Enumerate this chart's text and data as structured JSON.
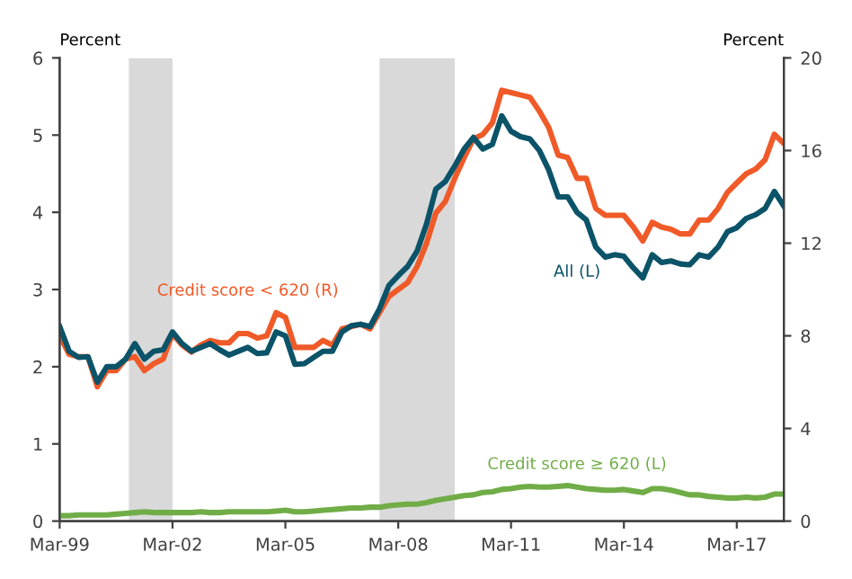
{
  "chart_data": {
    "type": "line",
    "ylabel": "Percent",
    "y2label": "Percent",
    "x": [
      "1999-03",
      "1999-06",
      "1999-09",
      "1999-12",
      "2000-03",
      "2000-06",
      "2000-09",
      "2000-12",
      "2001-03",
      "2001-06",
      "2001-09",
      "2001-12",
      "2002-03",
      "2002-06",
      "2002-09",
      "2002-12",
      "2003-03",
      "2003-06",
      "2003-09",
      "2003-12",
      "2004-03",
      "2004-06",
      "2004-09",
      "2004-12",
      "2005-03",
      "2005-06",
      "2005-09",
      "2005-12",
      "2006-03",
      "2006-06",
      "2006-09",
      "2006-12",
      "2007-03",
      "2007-06",
      "2007-09",
      "2007-12",
      "2008-03",
      "2008-06",
      "2008-09",
      "2008-12",
      "2009-03",
      "2009-06",
      "2009-09",
      "2009-12",
      "2010-03",
      "2010-06",
      "2010-09",
      "2010-12",
      "2011-03",
      "2011-06",
      "2011-09",
      "2011-12",
      "2012-03",
      "2012-06",
      "2012-09",
      "2012-12",
      "2013-03",
      "2013-06",
      "2013-09",
      "2013-12",
      "2014-03",
      "2014-06",
      "2014-09",
      "2014-12",
      "2015-03",
      "2015-06",
      "2015-09",
      "2015-12",
      "2016-03",
      "2016-06",
      "2016-09",
      "2016-12",
      "2017-03",
      "2017-06",
      "2017-09",
      "2017-12",
      "2018-03",
      "2018-06"
    ],
    "series": [
      {
        "name": "Credit score < 620 (R)",
        "color": "#f05a28",
        "axis": "y2",
        "values": [
          8.0,
          7.2,
          7.1,
          7.1,
          5.8,
          6.5,
          6.5,
          7.0,
          7.1,
          6.5,
          6.8,
          7.0,
          8.1,
          7.6,
          7.3,
          7.6,
          7.8,
          7.7,
          7.7,
          8.1,
          8.1,
          7.9,
          8.0,
          9.0,
          8.8,
          7.5,
          7.5,
          7.5,
          7.8,
          7.6,
          8.3,
          8.4,
          8.5,
          8.3,
          9.0,
          9.7,
          10.0,
          10.3,
          11.0,
          12.0,
          13.3,
          13.8,
          14.8,
          15.7,
          16.5,
          16.7,
          17.2,
          18.6,
          18.5,
          18.4,
          18.3,
          17.7,
          17.0,
          15.8,
          15.7,
          14.8,
          14.8,
          13.5,
          13.2,
          13.2,
          13.2,
          12.7,
          12.1,
          12.9,
          12.7,
          12.6,
          12.4,
          12.4,
          13.0,
          13.0,
          13.5,
          14.2,
          14.6,
          15.0,
          15.2,
          15.6,
          16.7,
          16.3
        ]
      },
      {
        "name": "All (L)",
        "color": "#0b5368",
        "values": [
          2.52,
          2.2,
          2.12,
          2.13,
          1.8,
          2.0,
          2.0,
          2.1,
          2.3,
          2.1,
          2.2,
          2.22,
          2.45,
          2.3,
          2.2,
          2.25,
          2.3,
          2.22,
          2.15,
          2.2,
          2.25,
          2.17,
          2.18,
          2.45,
          2.4,
          2.03,
          2.04,
          2.12,
          2.2,
          2.2,
          2.45,
          2.53,
          2.55,
          2.52,
          2.75,
          3.05,
          3.18,
          3.3,
          3.5,
          3.85,
          4.3,
          4.4,
          4.6,
          4.82,
          4.97,
          4.82,
          4.88,
          5.25,
          5.05,
          4.98,
          4.95,
          4.8,
          4.55,
          4.2,
          4.2,
          4.0,
          3.9,
          3.55,
          3.42,
          3.45,
          3.43,
          3.28,
          3.15,
          3.45,
          3.35,
          3.37,
          3.33,
          3.32,
          3.45,
          3.42,
          3.55,
          3.75,
          3.8,
          3.92,
          3.97,
          4.05,
          4.27,
          4.08
        ]
      },
      {
        "name": "Credit score ≥ 620 (L)",
        "color": "#70ad47",
        "values": [
          0.07,
          0.07,
          0.08,
          0.08,
          0.08,
          0.08,
          0.09,
          0.1,
          0.11,
          0.12,
          0.11,
          0.11,
          0.11,
          0.11,
          0.11,
          0.12,
          0.11,
          0.11,
          0.12,
          0.12,
          0.12,
          0.12,
          0.12,
          0.13,
          0.14,
          0.12,
          0.12,
          0.13,
          0.14,
          0.15,
          0.16,
          0.17,
          0.17,
          0.18,
          0.18,
          0.2,
          0.21,
          0.22,
          0.22,
          0.24,
          0.27,
          0.29,
          0.31,
          0.33,
          0.34,
          0.37,
          0.38,
          0.41,
          0.42,
          0.44,
          0.45,
          0.44,
          0.44,
          0.45,
          0.46,
          0.44,
          0.42,
          0.41,
          0.4,
          0.4,
          0.41,
          0.39,
          0.37,
          0.42,
          0.42,
          0.4,
          0.37,
          0.34,
          0.34,
          0.32,
          0.31,
          0.3,
          0.3,
          0.31,
          0.3,
          0.31,
          0.35,
          0.35
        ]
      }
    ],
    "bands": [
      {
        "axis": "x",
        "from": "2001-01",
        "to": "2002-03",
        "color": "#d9d9d9"
      },
      {
        "axis": "x",
        "from": "2007-09",
        "to": "2009-09",
        "color": "#d9d9d9"
      }
    ],
    "xlim": [
      "1999-03",
      "2018-06"
    ],
    "xticks": [
      {
        "value": "1999-03",
        "label": "Mar-99"
      },
      {
        "value": "2002-03",
        "label": "Mar-02"
      },
      {
        "value": "2005-03",
        "label": "Mar-05"
      },
      {
        "value": "2008-03",
        "label": "Mar-08"
      },
      {
        "value": "2011-03",
        "label": "Mar-11"
      },
      {
        "value": "2014-03",
        "label": "Mar-14"
      },
      {
        "value": "2017-03",
        "label": "Mar-17"
      }
    ],
    "ylim": [
      0,
      6
    ],
    "yticks": [
      0,
      1,
      2,
      3,
      4,
      5,
      6
    ],
    "y2lim": [
      0,
      20
    ],
    "y2ticks": [
      0,
      4,
      8,
      12,
      16,
      20
    ],
    "grid": false,
    "legend": false
  }
}
